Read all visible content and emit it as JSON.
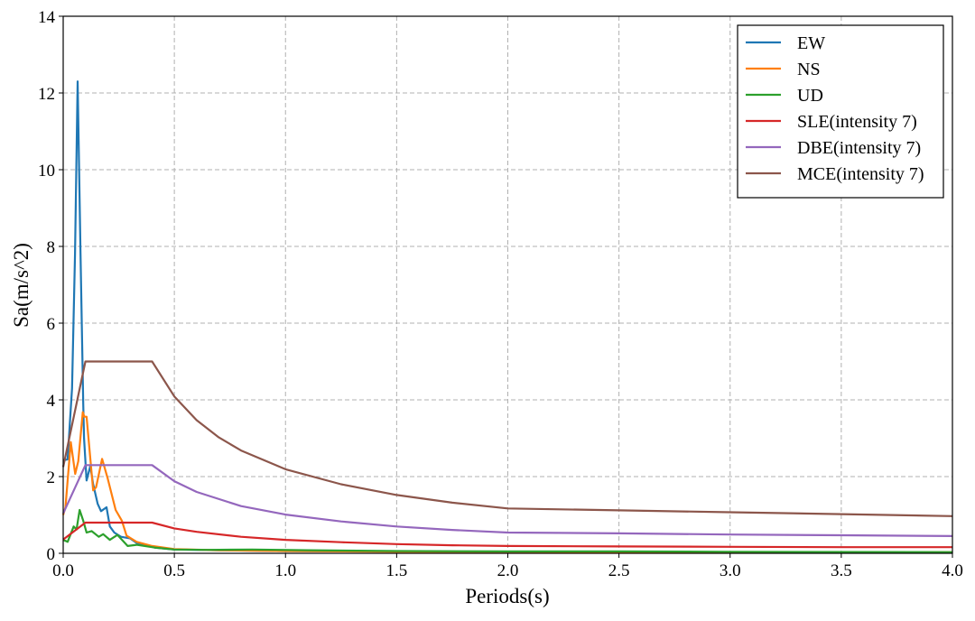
{
  "chart_data": {
    "type": "line",
    "title": "",
    "xlabel": "Periods(s)",
    "ylabel": "Sa(m/s^2)",
    "xlim": [
      0,
      4.0
    ],
    "ylim": [
      0,
      14
    ],
    "xticks": [
      "0.0",
      "0.5",
      "1.0",
      "1.5",
      "2.0",
      "2.5",
      "3.0",
      "3.5",
      "4.0"
    ],
    "yticks": [
      "0",
      "2",
      "4",
      "6",
      "8",
      "10",
      "12",
      "14"
    ],
    "grid": true,
    "legend_position": "top-right",
    "series": [
      {
        "name": "EW",
        "color": "#1f77b4",
        "x": [
          0,
          0.02,
          0.03,
          0.04,
          0.053,
          0.065,
          0.078,
          0.09,
          0.094,
          0.105,
          0.122,
          0.135,
          0.155,
          0.17,
          0.195,
          0.21,
          0.23,
          0.26,
          0.3,
          0.33,
          0.37,
          0.41,
          0.5,
          0.7,
          1.0,
          1.5,
          2.0,
          3.0,
          4.0
        ],
        "y": [
          2.42,
          2.45,
          3.4,
          4.3,
          7.8,
          12.3,
          7.8,
          3.9,
          3.0,
          1.9,
          2.27,
          1.8,
          1.29,
          1.1,
          1.2,
          0.7,
          0.54,
          0.43,
          0.39,
          0.27,
          0.22,
          0.15,
          0.1,
          0.08,
          0.06,
          0.05,
          0.04,
          0.03,
          0.03
        ]
      },
      {
        "name": "NS",
        "color": "#ff7f0e",
        "x": [
          0,
          0.01,
          0.034,
          0.054,
          0.068,
          0.088,
          0.095,
          0.105,
          0.135,
          0.148,
          0.175,
          0.2,
          0.236,
          0.264,
          0.285,
          0.33,
          0.4,
          0.5,
          0.7,
          1.0,
          1.5,
          2.0,
          3.0,
          4.0
        ],
        "y": [
          1.0,
          1.2,
          2.9,
          2.07,
          2.4,
          3.68,
          3.56,
          3.56,
          1.64,
          1.72,
          2.46,
          1.95,
          1.13,
          0.85,
          0.46,
          0.3,
          0.19,
          0.11,
          0.08,
          0.06,
          0.04,
          0.04,
          0.03,
          0.03
        ]
      },
      {
        "name": "UD",
        "color": "#2ca02c",
        "x": [
          0,
          0.02,
          0.047,
          0.06,
          0.074,
          0.09,
          0.105,
          0.128,
          0.16,
          0.18,
          0.21,
          0.244,
          0.29,
          0.33,
          0.41,
          0.5,
          0.65,
          0.85,
          1.1,
          1.5,
          2.0,
          2.5,
          3.0,
          4.0
        ],
        "y": [
          0.35,
          0.3,
          0.7,
          0.62,
          1.13,
          0.85,
          0.54,
          0.58,
          0.43,
          0.5,
          0.35,
          0.48,
          0.19,
          0.22,
          0.15,
          0.1,
          0.09,
          0.1,
          0.08,
          0.06,
          0.05,
          0.05,
          0.04,
          0.03
        ]
      },
      {
        "name": "SLE(intensity 7)",
        "color": "#d62728",
        "x": [
          0,
          0.1,
          0.4,
          0.5,
          0.6,
          0.8,
          1.0,
          1.25,
          1.5,
          1.75,
          2.0,
          2.5,
          3.0,
          3.5,
          4.0
        ],
        "y": [
          0.36,
          0.8,
          0.8,
          0.65,
          0.56,
          0.43,
          0.35,
          0.29,
          0.24,
          0.21,
          0.19,
          0.18,
          0.17,
          0.16,
          0.16
        ]
      },
      {
        "name": "DBE(intensity 7)",
        "color": "#9467bd",
        "x": [
          0,
          0.1,
          0.4,
          0.5,
          0.6,
          0.8,
          1.0,
          1.25,
          1.5,
          1.75,
          2.0,
          2.5,
          3.0,
          3.5,
          4.0
        ],
        "y": [
          1.04,
          2.3,
          2.3,
          1.88,
          1.6,
          1.23,
          1.01,
          0.83,
          0.7,
          0.61,
          0.54,
          0.52,
          0.49,
          0.47,
          0.45
        ]
      },
      {
        "name": "MCE(intensity 7)",
        "color": "#8c564b",
        "x": [
          0,
          0.1,
          0.4,
          0.5,
          0.6,
          0.7,
          0.8,
          1.0,
          1.25,
          1.5,
          1.75,
          2.0,
          2.5,
          3.0,
          3.5,
          4.0
        ],
        "y": [
          2.25,
          5.0,
          5.0,
          4.09,
          3.47,
          3.02,
          2.68,
          2.19,
          1.8,
          1.52,
          1.32,
          1.17,
          1.12,
          1.07,
          1.02,
          0.97
        ]
      }
    ]
  }
}
